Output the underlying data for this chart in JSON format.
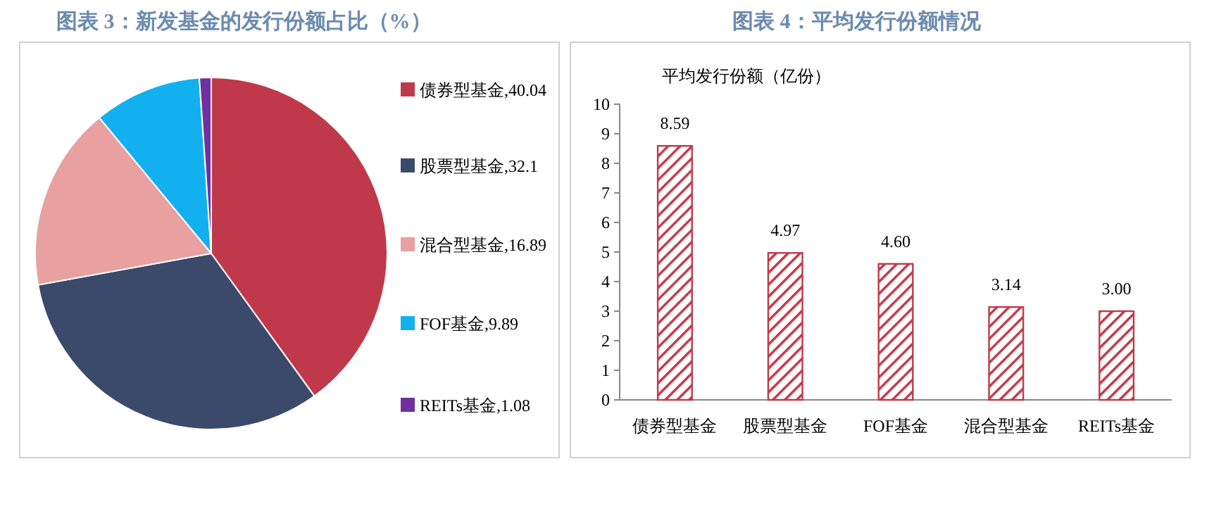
{
  "chart_data": [
    {
      "type": "pie",
      "title": "图表 3：新发基金的发行份额占比（%）",
      "categories": [
        "债券型基金,40.04",
        "股票型基金,32.1",
        "混合型基金,16.89",
        "FOF基金,9.89",
        "REITs基金,1.08"
      ],
      "values": [
        40.04,
        32.1,
        16.89,
        9.89,
        1.08
      ],
      "colors": [
        "#c0394a",
        "#3b4a6b",
        "#e8a0a0",
        "#13b0f0",
        "#7030a0"
      ],
      "legend": "right"
    },
    {
      "type": "bar",
      "title": "图表 4：平均发行份额情况",
      "ylabel": "平均发行份额（亿份）",
      "categories": [
        "债券型基金",
        "股票型基金",
        "FOF基金",
        "混合型基金",
        "REITs基金"
      ],
      "values": [
        8.59,
        4.97,
        4.6,
        3.14,
        3.0
      ],
      "value_labels": [
        "8.59",
        "4.97",
        "4.60",
        "3.14",
        "3.00"
      ],
      "color": "#c0394a",
      "ylim": [
        0,
        10
      ],
      "yticks": [
        0,
        1,
        2,
        3,
        4,
        5,
        6,
        7,
        8,
        9,
        10
      ],
      "grid": false
    }
  ]
}
